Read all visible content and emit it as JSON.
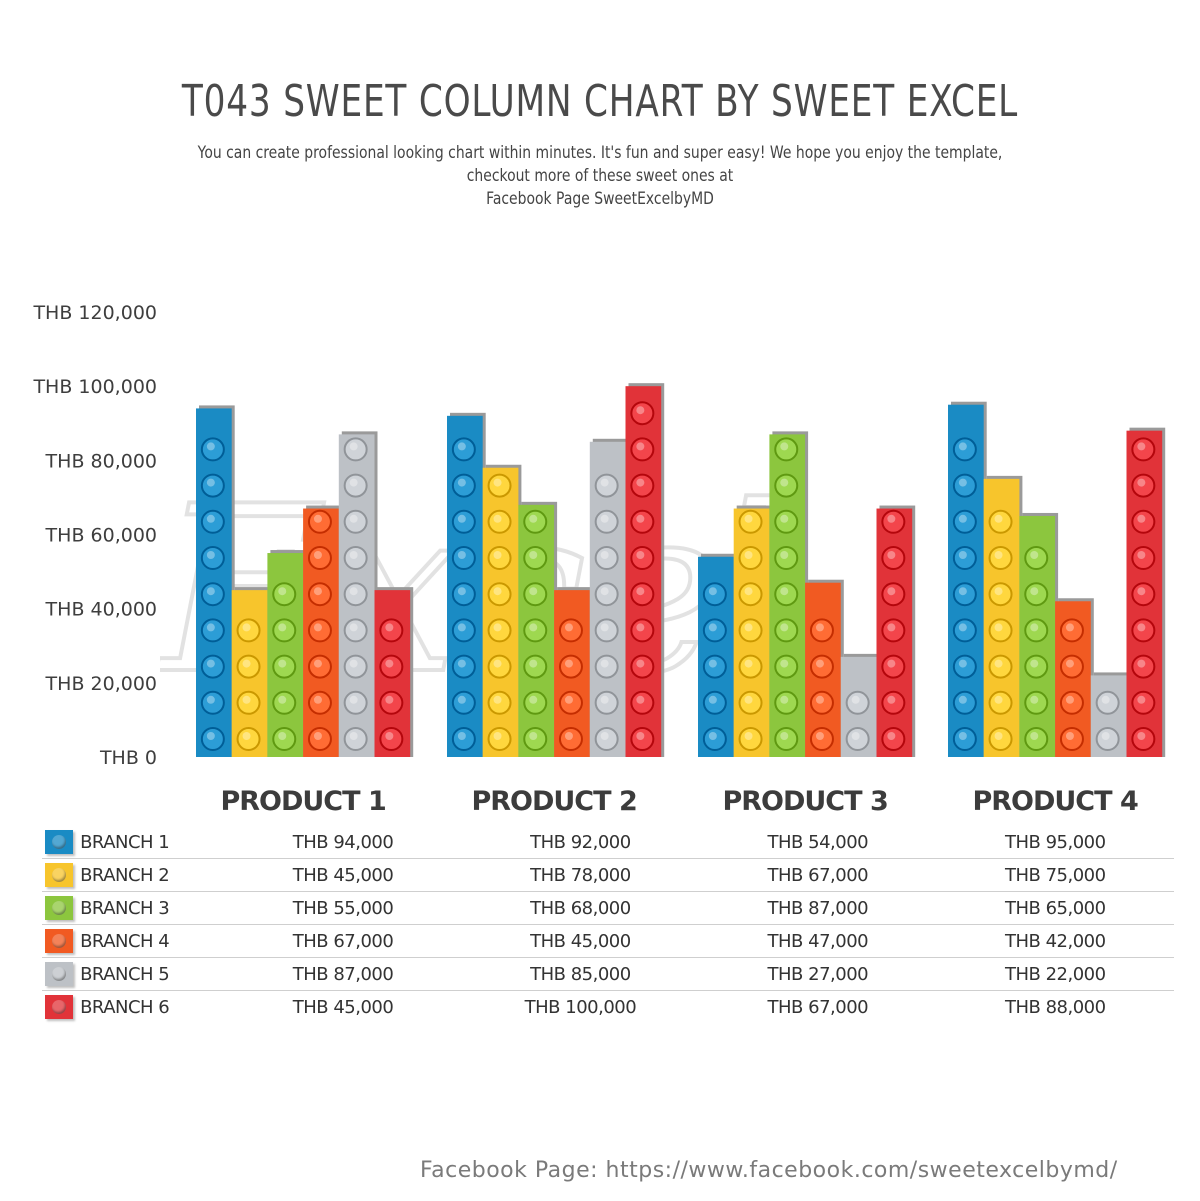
{
  "title": "T043 SWEET COLUMN CHART BY SWEET EXCEL",
  "subtitle_line1": "You can create professional looking chart within minutes. It's fun and super easy! We hope you enjoy the template, checkout more of these sweet ones at",
  "subtitle_line2": "Facebook Page SweetExcelbyMD",
  "watermark": "Excel",
  "footer": "Facebook Page: https://www.facebook.com/sweetexcelbymd/",
  "colors": {
    "Branch 1": "#1a8bc4",
    "Branch 2": "#f7c52c",
    "Branch 3": "#8cc63e",
    "Branch 4": "#f15a22",
    "Branch 5": "#bdc1c6",
    "Branch 6": "#e13339"
  },
  "chart_data": {
    "type": "bar",
    "categories": [
      "PRODUCT 1",
      "PRODUCT 2",
      "PRODUCT 3",
      "PRODUCT 4"
    ],
    "series": [
      {
        "name": "BRANCH 1",
        "values": [
          94000,
          92000,
          54000,
          95000
        ]
      },
      {
        "name": "BRANCH 2",
        "values": [
          45000,
          78000,
          67000,
          75000
        ]
      },
      {
        "name": "BRANCH 3",
        "values": [
          55000,
          68000,
          87000,
          65000
        ]
      },
      {
        "name": "BRANCH 4",
        "values": [
          67000,
          45000,
          47000,
          42000
        ]
      },
      {
        "name": "BRANCH 5",
        "values": [
          87000,
          85000,
          27000,
          22000
        ]
      },
      {
        "name": "BRANCH 6",
        "values": [
          45000,
          100000,
          67000,
          88000
        ]
      }
    ],
    "ylim": [
      0,
      120000
    ],
    "yticks": [
      "THB 0",
      "THB 20,000",
      "THB 40,000",
      "THB 60,000",
      "THB 80,000",
      "THB 100,000",
      "THB 120,000"
    ],
    "grid": false,
    "legend": "table below chart"
  },
  "table": {
    "rows": [
      {
        "name": "BRANCH 1",
        "values": [
          "THB 94,000",
          "THB 92,000",
          "THB 54,000",
          "THB 95,000"
        ]
      },
      {
        "name": "BRANCH 2",
        "values": [
          "THB 45,000",
          "THB 78,000",
          "THB 67,000",
          "THB 75,000"
        ]
      },
      {
        "name": "BRANCH 3",
        "values": [
          "THB 55,000",
          "THB 68,000",
          "THB 87,000",
          "THB 65,000"
        ]
      },
      {
        "name": "BRANCH 4",
        "values": [
          "THB 67,000",
          "THB 45,000",
          "THB 47,000",
          "THB 42,000"
        ]
      },
      {
        "name": "BRANCH 5",
        "values": [
          "THB 87,000",
          "THB 85,000",
          "THB 27,000",
          "THB 22,000"
        ]
      },
      {
        "name": "BRANCH 6",
        "values": [
          "THB 45,000",
          "THB 100,000",
          "THB 67,000",
          "THB 88,000"
        ]
      }
    ]
  }
}
